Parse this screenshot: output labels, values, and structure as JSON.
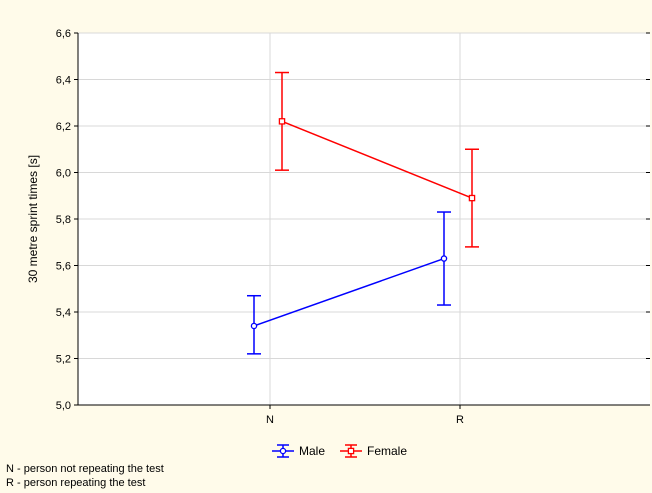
{
  "chart_data": {
    "type": "line",
    "title": "",
    "ylabel": "30 metre sprint times [s]",
    "xlabel": "",
    "categories": [
      "N",
      "R"
    ],
    "ylim": [
      5.0,
      6.6
    ],
    "yticks": [
      "5,0",
      "5,2",
      "5,4",
      "5,6",
      "5,8",
      "6,0",
      "6,2",
      "6,4",
      "6,6"
    ],
    "grid": true,
    "legend_position": "bottom",
    "series": [
      {
        "name": "Male",
        "color": "#0000ff",
        "marker": "circle",
        "values": [
          5.34,
          5.63
        ],
        "err_low": [
          5.22,
          5.43
        ],
        "err_high": [
          5.47,
          5.83
        ]
      },
      {
        "name": "Female",
        "color": "#ff0000",
        "marker": "square",
        "values": [
          6.22,
          5.89
        ],
        "err_low": [
          6.01,
          5.68
        ],
        "err_high": [
          6.43,
          6.1
        ]
      }
    ]
  },
  "notes": [
    "N - person not repeating the test",
    "R - person repeating the test"
  ]
}
